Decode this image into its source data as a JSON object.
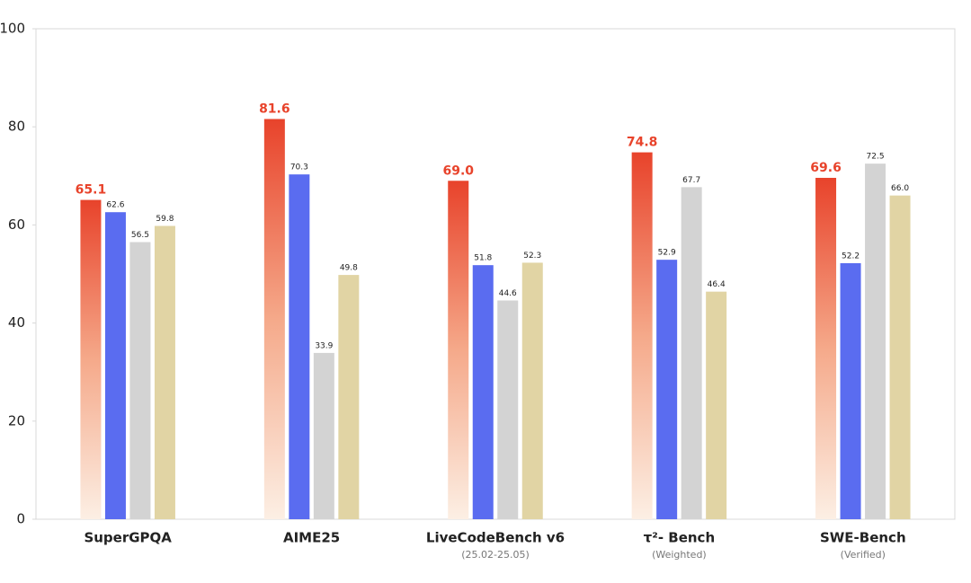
{
  "chart_data": {
    "type": "bar",
    "categories": [
      "SuperGPQA",
      "AIME25",
      "LiveCodeBench v6",
      "τ²- Bench",
      "SWE-Bench"
    ],
    "category_subtitles": [
      null,
      null,
      "(25.02-25.05)",
      "(Weighted)",
      "(Verified)"
    ],
    "series": [
      {
        "color": "#e8432b",
        "values": [
          65.1,
          81.6,
          69.0,
          74.8,
          69.6
        ],
        "value_labels": [
          "65.1",
          "81.6",
          "69.0",
          "74.8",
          "69.6"
        ]
      },
      {
        "color": "#5a6cf0",
        "values": [
          62.6,
          70.3,
          51.8,
          52.9,
          52.2
        ],
        "value_labels": [
          "62.6",
          "70.3",
          "51.8",
          "52.9",
          "52.2"
        ]
      },
      {
        "color": "#d3d3d3",
        "values": [
          56.5,
          33.9,
          44.6,
          67.7,
          72.5
        ],
        "value_labels": [
          "56.5",
          "33.9",
          "44.6",
          "67.7",
          "72.5"
        ]
      },
      {
        "color": "#e1d4a4",
        "values": [
          59.8,
          49.8,
          52.3,
          46.4,
          66.0
        ],
        "value_labels": [
          "59.8",
          "49.8",
          "52.3",
          "46.4",
          "66.0"
        ]
      }
    ],
    "ylim": [
      0,
      100
    ],
    "yticks": [
      0,
      20,
      40,
      60,
      80,
      100
    ]
  }
}
